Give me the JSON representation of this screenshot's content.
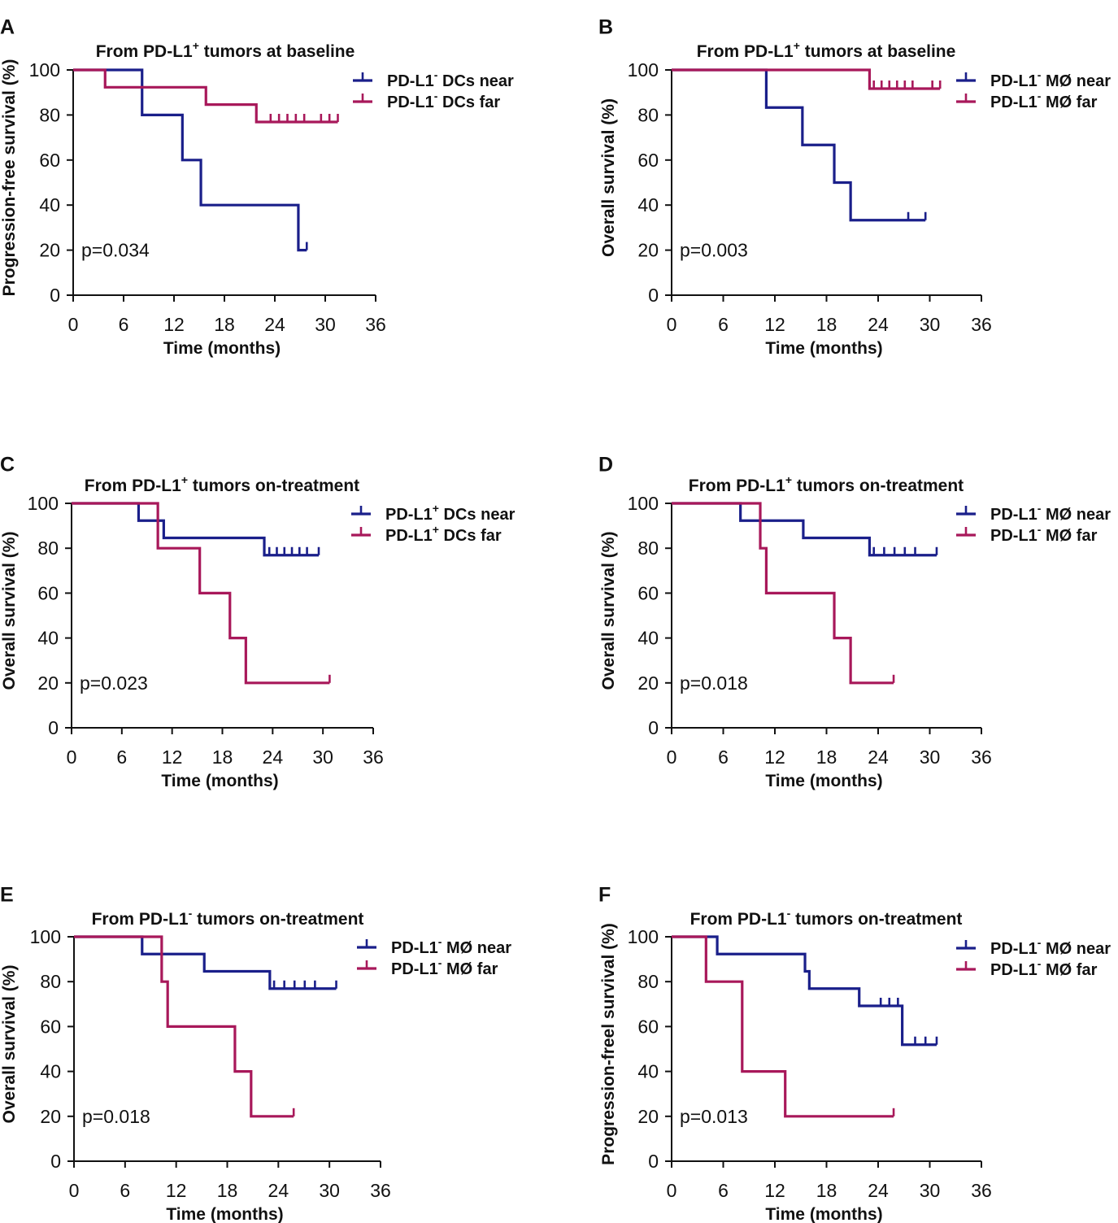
{
  "colors": {
    "near": "#1a1f8a",
    "far": "#a8185a",
    "axis": "#111111"
  },
  "chart_data": [
    {
      "type": "line",
      "subtype": "kaplan-meier",
      "label": "A",
      "title": {
        "pre": "From PD-L1",
        "sup": "+",
        "post": " tumors at baseline"
      },
      "ylabel": "Progression-free survival (%)",
      "xlabel": "Time (months)",
      "xlim": [
        0,
        36
      ],
      "ylim": [
        0,
        100
      ],
      "xticks": [
        "0",
        "6",
        "12",
        "18",
        "24",
        "30",
        "36"
      ],
      "yticks": [
        "0",
        "20",
        "40",
        "60",
        "80",
        "100"
      ],
      "pvalue": "p=0.034",
      "series": [
        {
          "name": "PD-L1⁻ DCs near",
          "legend": {
            "pre": "PD-L1",
            "sup": "-",
            "post": " DCs near"
          },
          "color": "near",
          "steps": [
            [
              0,
              100
            ],
            [
              8.2,
              80
            ],
            [
              13,
              60
            ],
            [
              15.2,
              40
            ],
            [
              26.8,
              20
            ],
            [
              27.8,
              20
            ]
          ],
          "censors": [
            [
              27.8,
              20
            ]
          ]
        },
        {
          "name": "PD-L1⁻ DCs far",
          "legend": {
            "pre": "PD-L1",
            "sup": "-",
            "post": " DCs far"
          },
          "color": "far",
          "steps": [
            [
              0,
              100
            ],
            [
              3.8,
              92.3
            ],
            [
              15.8,
              84.6
            ],
            [
              21.8,
              76.9
            ],
            [
              31.5,
              76.9
            ]
          ],
          "censors": [
            [
              23.5,
              76.9
            ],
            [
              24.5,
              76.9
            ],
            [
              25.5,
              76.9
            ],
            [
              26.5,
              76.9
            ],
            [
              27.5,
              76.9
            ],
            [
              29.5,
              76.9
            ],
            [
              30.5,
              76.9
            ],
            [
              31.5,
              76.9
            ]
          ]
        }
      ]
    },
    {
      "type": "line",
      "subtype": "kaplan-meier",
      "label": "B",
      "title": {
        "pre": "From PD-L1",
        "sup": "+",
        "post": " tumors at baseline"
      },
      "ylabel": "Overall survival (%)",
      "xlabel": "Time (months)",
      "xlim": [
        0,
        36
      ],
      "ylim": [
        0,
        100
      ],
      "xticks": [
        "0",
        "6",
        "12",
        "18",
        "24",
        "30",
        "36"
      ],
      "yticks": [
        "0",
        "20",
        "40",
        "60",
        "80",
        "100"
      ],
      "pvalue": "p=0.003",
      "series": [
        {
          "name": "PD-L1⁻ MØ near",
          "legend": {
            "pre": "PD-L1",
            "sup": "-",
            "post": " MØ near"
          },
          "color": "near",
          "steps": [
            [
              0,
              100
            ],
            [
              11,
              83.3
            ],
            [
              15.2,
              66.7
            ],
            [
              18.9,
              50
            ],
            [
              20.8,
              33.3
            ],
            [
              29.5,
              33.3
            ]
          ],
          "censors": [
            [
              27.5,
              33.3
            ],
            [
              29.5,
              33.3
            ]
          ]
        },
        {
          "name": "PD-L1⁻ MØ far",
          "legend": {
            "pre": "PD-L1",
            "sup": "-",
            "post": " MØ far"
          },
          "color": "far",
          "steps": [
            [
              0,
              100
            ],
            [
              23,
              91.7
            ],
            [
              31.2,
              91.7
            ]
          ],
          "censors": [
            [
              23.5,
              91.7
            ],
            [
              24.4,
              91.7
            ],
            [
              25.3,
              91.7
            ],
            [
              26.2,
              91.7
            ],
            [
              27.1,
              91.7
            ],
            [
              28,
              91.7
            ],
            [
              30.3,
              91.7
            ],
            [
              31.2,
              91.7
            ]
          ]
        }
      ]
    },
    {
      "type": "line",
      "subtype": "kaplan-meier",
      "label": "C",
      "title": {
        "pre": "From PD-L1",
        "sup": "+",
        "post": " tumors on-treatment"
      },
      "ylabel": "Overall survival (%)",
      "xlabel": "Time (months)",
      "xlim": [
        0,
        36
      ],
      "ylim": [
        0,
        100
      ],
      "xticks": [
        "0",
        "6",
        "12",
        "18",
        "24",
        "30",
        "36"
      ],
      "yticks": [
        "0",
        "20",
        "40",
        "60",
        "80",
        "100"
      ],
      "pvalue": "p=0.023",
      "series": [
        {
          "name": "PD-L1⁺ DCs near",
          "legend": {
            "pre": "PD-L1",
            "sup": "+",
            "post": " DCs near"
          },
          "color": "near",
          "steps": [
            [
              0,
              100
            ],
            [
              8,
              92.3
            ],
            [
              11,
              84.6
            ],
            [
              23,
              76.9
            ],
            [
              29.5,
              76.9
            ]
          ],
          "censors": [
            [
              23.6,
              76.9
            ],
            [
              24.5,
              76.9
            ],
            [
              25.4,
              76.9
            ],
            [
              26.3,
              76.9
            ],
            [
              27.2,
              76.9
            ],
            [
              28.1,
              76.9
            ],
            [
              29.5,
              76.9
            ]
          ]
        },
        {
          "name": "PD-L1⁺ DCs far",
          "legend": {
            "pre": "PD-L1",
            "sup": "+",
            "post": " DCs far"
          },
          "color": "far",
          "steps": [
            [
              0,
              100
            ],
            [
              10.3,
              80
            ],
            [
              15.3,
              60
            ],
            [
              18.9,
              40
            ],
            [
              20.8,
              20
            ],
            [
              30.8,
              20
            ]
          ],
          "censors": [
            [
              30.8,
              20
            ]
          ]
        }
      ]
    },
    {
      "type": "line",
      "subtype": "kaplan-meier",
      "label": "D",
      "title": {
        "pre": "From PD-L1",
        "sup": "+",
        "post": " tumors on-treatment"
      },
      "ylabel": "Overall survival (%)",
      "xlabel": "Time (months)",
      "xlim": [
        0,
        36
      ],
      "ylim": [
        0,
        100
      ],
      "xticks": [
        "0",
        "6",
        "12",
        "18",
        "24",
        "30",
        "36"
      ],
      "yticks": [
        "0",
        "20",
        "40",
        "60",
        "80",
        "100"
      ],
      "pvalue": "p=0.018",
      "series": [
        {
          "name": "PD-L1⁻ MØ near",
          "legend": {
            "pre": "PD-L1",
            "sup": "-",
            "post": " MØ near"
          },
          "color": "near",
          "steps": [
            [
              0,
              100
            ],
            [
              8,
              92.3
            ],
            [
              15.3,
              84.6
            ],
            [
              23,
              76.9
            ],
            [
              30.8,
              76.9
            ]
          ],
          "censors": [
            [
              23.5,
              76.9
            ],
            [
              24.7,
              76.9
            ],
            [
              25.9,
              76.9
            ],
            [
              27.1,
              76.9
            ],
            [
              28.3,
              76.9
            ],
            [
              30.8,
              76.9
            ]
          ]
        },
        {
          "name": "PD-L1⁻ MØ far",
          "legend": {
            "pre": "PD-L1",
            "sup": "-",
            "post": " MØ far"
          },
          "color": "far",
          "steps": [
            [
              0,
              100
            ],
            [
              10.3,
              80
            ],
            [
              11,
              60
            ],
            [
              18.9,
              40
            ],
            [
              20.8,
              20
            ],
            [
              25.8,
              20
            ]
          ],
          "censors": [
            [
              25.8,
              20
            ]
          ]
        }
      ]
    },
    {
      "type": "line",
      "subtype": "kaplan-meier",
      "label": "E",
      "title": {
        "pre": "From PD-L1",
        "sup": "-",
        "post": " tumors on-treatment"
      },
      "ylabel": "Overall survival (%)",
      "xlabel": "Time (months)",
      "xlim": [
        0,
        36
      ],
      "ylim": [
        0,
        100
      ],
      "xticks": [
        "0",
        "6",
        "12",
        "18",
        "24",
        "30",
        "36"
      ],
      "yticks": [
        "0",
        "20",
        "40",
        "60",
        "80",
        "100"
      ],
      "pvalue": "p=0.018",
      "series": [
        {
          "name": "PD-L1⁻ MØ near",
          "legend": {
            "pre": "PD-L1",
            "sup": "-",
            "post": " MØ near"
          },
          "color": "near",
          "steps": [
            [
              0,
              100
            ],
            [
              8,
              92.3
            ],
            [
              15.3,
              84.6
            ],
            [
              23,
              76.9
            ],
            [
              30.8,
              76.9
            ]
          ],
          "censors": [
            [
              23.5,
              76.9
            ],
            [
              24.7,
              76.9
            ],
            [
              25.9,
              76.9
            ],
            [
              27.1,
              76.9
            ],
            [
              28.3,
              76.9
            ],
            [
              30.8,
              76.9
            ]
          ]
        },
        {
          "name": "PD-L1⁻ MØ far",
          "legend": {
            "pre": "PD-L1",
            "sup": "-",
            "post": " MØ far"
          },
          "color": "far",
          "steps": [
            [
              0,
              100
            ],
            [
              10.3,
              80
            ],
            [
              11,
              60
            ],
            [
              18.9,
              40
            ],
            [
              20.8,
              20
            ],
            [
              25.8,
              20
            ]
          ],
          "censors": [
            [
              25.8,
              20
            ]
          ]
        }
      ]
    },
    {
      "type": "line",
      "subtype": "kaplan-meier",
      "label": "F",
      "title": {
        "pre": "From PD-L1",
        "sup": "-",
        "post": " tumors on-treatment"
      },
      "ylabel": "Progression-freel survival (%)",
      "xlabel": "Time (months)",
      "xlim": [
        0,
        36
      ],
      "ylim": [
        0,
        100
      ],
      "xticks": [
        "0",
        "6",
        "12",
        "18",
        "24",
        "30",
        "36"
      ],
      "yticks": [
        "0",
        "20",
        "40",
        "60",
        "80",
        "100"
      ],
      "pvalue": "p=0.013",
      "series": [
        {
          "name": "PD-L1⁻ MØ near",
          "legend": {
            "pre": "PD-L1",
            "sup": "-",
            "post": " MØ near"
          },
          "color": "near",
          "steps": [
            [
              0,
              100
            ],
            [
              5.3,
              92.3
            ],
            [
              15.5,
              84.6
            ],
            [
              16,
              76.9
            ],
            [
              21.8,
              69.2
            ],
            [
              26.8,
              51.9
            ],
            [
              30.8,
              51.9
            ]
          ],
          "censors": [
            [
              24.3,
              69.2
            ],
            [
              25.3,
              69.2
            ],
            [
              26.3,
              69.2
            ],
            [
              28.3,
              51.9
            ],
            [
              29.5,
              51.9
            ],
            [
              30.8,
              51.9
            ]
          ]
        },
        {
          "name": "PD-L1⁻ MØ far",
          "legend": {
            "pre": "PD-L1",
            "sup": "-",
            "post": " MØ far"
          },
          "color": "far",
          "steps": [
            [
              0,
              100
            ],
            [
              4,
              80
            ],
            [
              8.2,
              40
            ],
            [
              13.2,
              20
            ],
            [
              25.8,
              20
            ]
          ],
          "censors": [
            [
              25.8,
              20
            ]
          ]
        }
      ]
    }
  ]
}
